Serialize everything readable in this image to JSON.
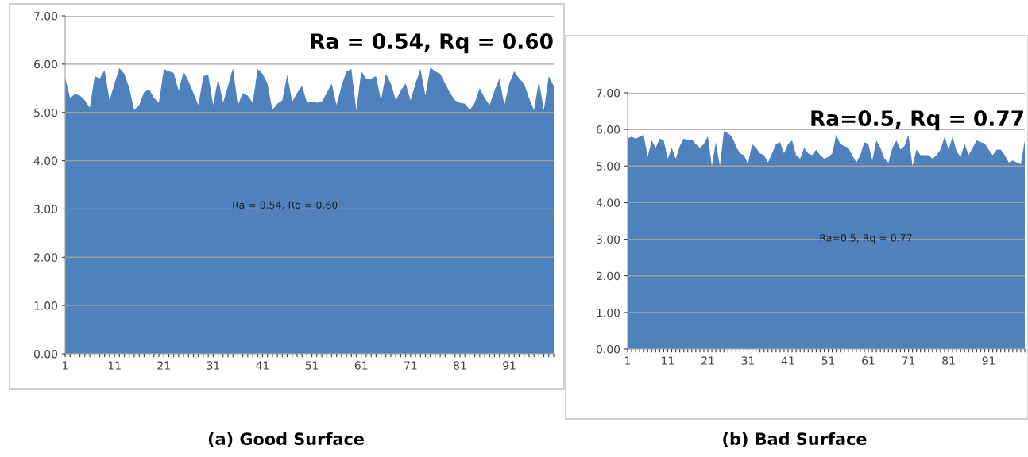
{
  "chart_data": [
    {
      "type": "area",
      "title": "Ra = 0.54, Rq = 0.60",
      "annotations": [
        "Ra = 0.54, Rq = 0.60",
        "(a) Good Surface"
      ],
      "categories": [
        "1",
        null,
        null,
        null,
        null,
        null,
        null,
        null,
        null,
        null,
        "11",
        null,
        null,
        null,
        null,
        null,
        null,
        null,
        null,
        null,
        "21",
        null,
        null,
        null,
        null,
        null,
        null,
        null,
        null,
        null,
        "31",
        null,
        null,
        null,
        null,
        null,
        null,
        null,
        null,
        null,
        "41",
        null,
        null,
        null,
        null,
        null,
        null,
        null,
        null,
        null,
        "51",
        null,
        null,
        null,
        null,
        null,
        null,
        null,
        null,
        null,
        "61",
        null,
        null,
        null,
        null,
        null,
        null,
        null,
        null,
        null,
        "71",
        null,
        null,
        null,
        null,
        null,
        null,
        null,
        null,
        null,
        "81",
        null,
        null,
        null,
        null,
        null,
        null,
        null,
        null,
        null,
        "91",
        null,
        null,
        null,
        null,
        null,
        null,
        null,
        null,
        null
      ],
      "series": [
        {
          "color": "#4f81bd",
          "values": [
            5.72,
            5.3,
            5.38,
            5.35,
            5.25,
            5.1,
            5.75,
            5.7,
            5.88,
            5.25,
            5.6,
            5.92,
            5.8,
            5.5,
            5.05,
            5.15,
            5.42,
            5.48,
            5.3,
            5.2,
            5.9,
            5.85,
            5.82,
            5.45,
            5.85,
            5.65,
            5.4,
            5.15,
            5.75,
            5.78,
            5.15,
            5.7,
            5.2,
            5.55,
            5.92,
            5.15,
            5.4,
            5.35,
            5.2,
            5.9,
            5.8,
            5.6,
            5.05,
            5.18,
            5.25,
            5.78,
            5.22,
            5.4,
            5.55,
            5.2,
            5.22,
            5.2,
            5.22,
            5.4,
            5.6,
            5.15,
            5.55,
            5.85,
            5.9,
            5.05,
            5.85,
            5.7,
            5.7,
            5.75,
            5.25,
            5.8,
            5.6,
            5.25,
            5.45,
            5.6,
            5.25,
            5.6,
            5.9,
            5.35,
            5.93,
            5.85,
            5.8,
            5.6,
            5.4,
            5.25,
            5.2,
            5.18,
            5.05,
            5.2,
            5.5,
            5.3,
            5.15,
            5.45,
            5.7,
            5.15,
            5.6,
            5.85,
            5.7,
            5.6,
            5.3,
            5.05,
            5.65,
            5.05,
            5.75,
            5.55
          ]
        }
      ],
      "ylim": [
        0,
        7
      ],
      "yticks": [
        {
          "value": 0,
          "label": "0.00"
        },
        {
          "value": 1,
          "label": "1.00"
        },
        {
          "value": 2,
          "label": "2.00"
        },
        {
          "value": 3,
          "label": "3.00"
        },
        {
          "value": 4,
          "label": "4.00"
        },
        {
          "value": 5,
          "label": "5.00"
        },
        {
          "value": 6,
          "label": "6.00"
        },
        {
          "value": 7,
          "label": "7.00"
        }
      ],
      "grid": "y"
    },
    {
      "type": "area",
      "title": "Ra=0.5, Rq = 0.77",
      "annotations": [
        "Ra=0.5, Rq = 0.77",
        "(b) Bad Surface"
      ],
      "categories": [
        "1",
        null,
        null,
        null,
        null,
        null,
        null,
        null,
        null,
        null,
        "11",
        null,
        null,
        null,
        null,
        null,
        null,
        null,
        null,
        null,
        "21",
        null,
        null,
        null,
        null,
        null,
        null,
        null,
        null,
        null,
        "31",
        null,
        null,
        null,
        null,
        null,
        null,
        null,
        null,
        null,
        "41",
        null,
        null,
        null,
        null,
        null,
        null,
        null,
        null,
        null,
        "51",
        null,
        null,
        null,
        null,
        null,
        null,
        null,
        null,
        null,
        "61",
        null,
        null,
        null,
        null,
        null,
        null,
        null,
        null,
        null,
        "71",
        null,
        null,
        null,
        null,
        null,
        null,
        null,
        null,
        null,
        "81",
        null,
        null,
        null,
        null,
        null,
        null,
        null,
        null,
        null,
        "91",
        null,
        null,
        null,
        null,
        null,
        null,
        null,
        null,
        null
      ],
      "series": [
        {
          "color": "#4f81bd",
          "values": [
            5.75,
            5.8,
            5.75,
            5.8,
            5.85,
            5.25,
            5.7,
            5.5,
            5.75,
            5.7,
            5.2,
            5.5,
            5.2,
            5.55,
            5.75,
            5.7,
            5.72,
            5.6,
            5.5,
            5.6,
            5.82,
            5.0,
            5.65,
            5.0,
            5.95,
            5.9,
            5.8,
            5.55,
            5.35,
            5.3,
            5.05,
            5.6,
            5.5,
            5.35,
            5.3,
            5.1,
            5.35,
            5.6,
            5.65,
            5.35,
            5.6,
            5.7,
            5.3,
            5.2,
            5.5,
            5.35,
            5.3,
            5.45,
            5.3,
            5.2,
            5.25,
            5.35,
            5.85,
            5.6,
            5.55,
            5.5,
            5.3,
            5.1,
            5.3,
            5.65,
            5.6,
            5.15,
            5.7,
            5.5,
            5.2,
            5.1,
            5.5,
            5.7,
            5.45,
            5.55,
            5.85,
            5.0,
            5.45,
            5.3,
            5.3,
            5.3,
            5.2,
            5.3,
            5.45,
            5.8,
            5.45,
            5.8,
            5.4,
            5.25,
            5.6,
            5.3,
            5.5,
            5.7,
            5.65,
            5.62,
            5.45,
            5.3,
            5.45,
            5.45,
            5.3,
            5.1,
            5.15,
            5.1,
            5.05,
            5.7
          ]
        }
      ],
      "ylim": [
        0,
        7
      ],
      "yticks": [
        {
          "value": 0,
          "label": "0.00"
        },
        {
          "value": 1,
          "label": "1.00"
        },
        {
          "value": 2,
          "label": "2.00"
        },
        {
          "value": 3,
          "label": "3.00"
        },
        {
          "value": 4,
          "label": "4.00"
        },
        {
          "value": 5,
          "label": "5.00"
        },
        {
          "value": 6,
          "label": "6.00"
        },
        {
          "value": 7,
          "label": "7.00"
        }
      ],
      "grid": "y"
    }
  ]
}
